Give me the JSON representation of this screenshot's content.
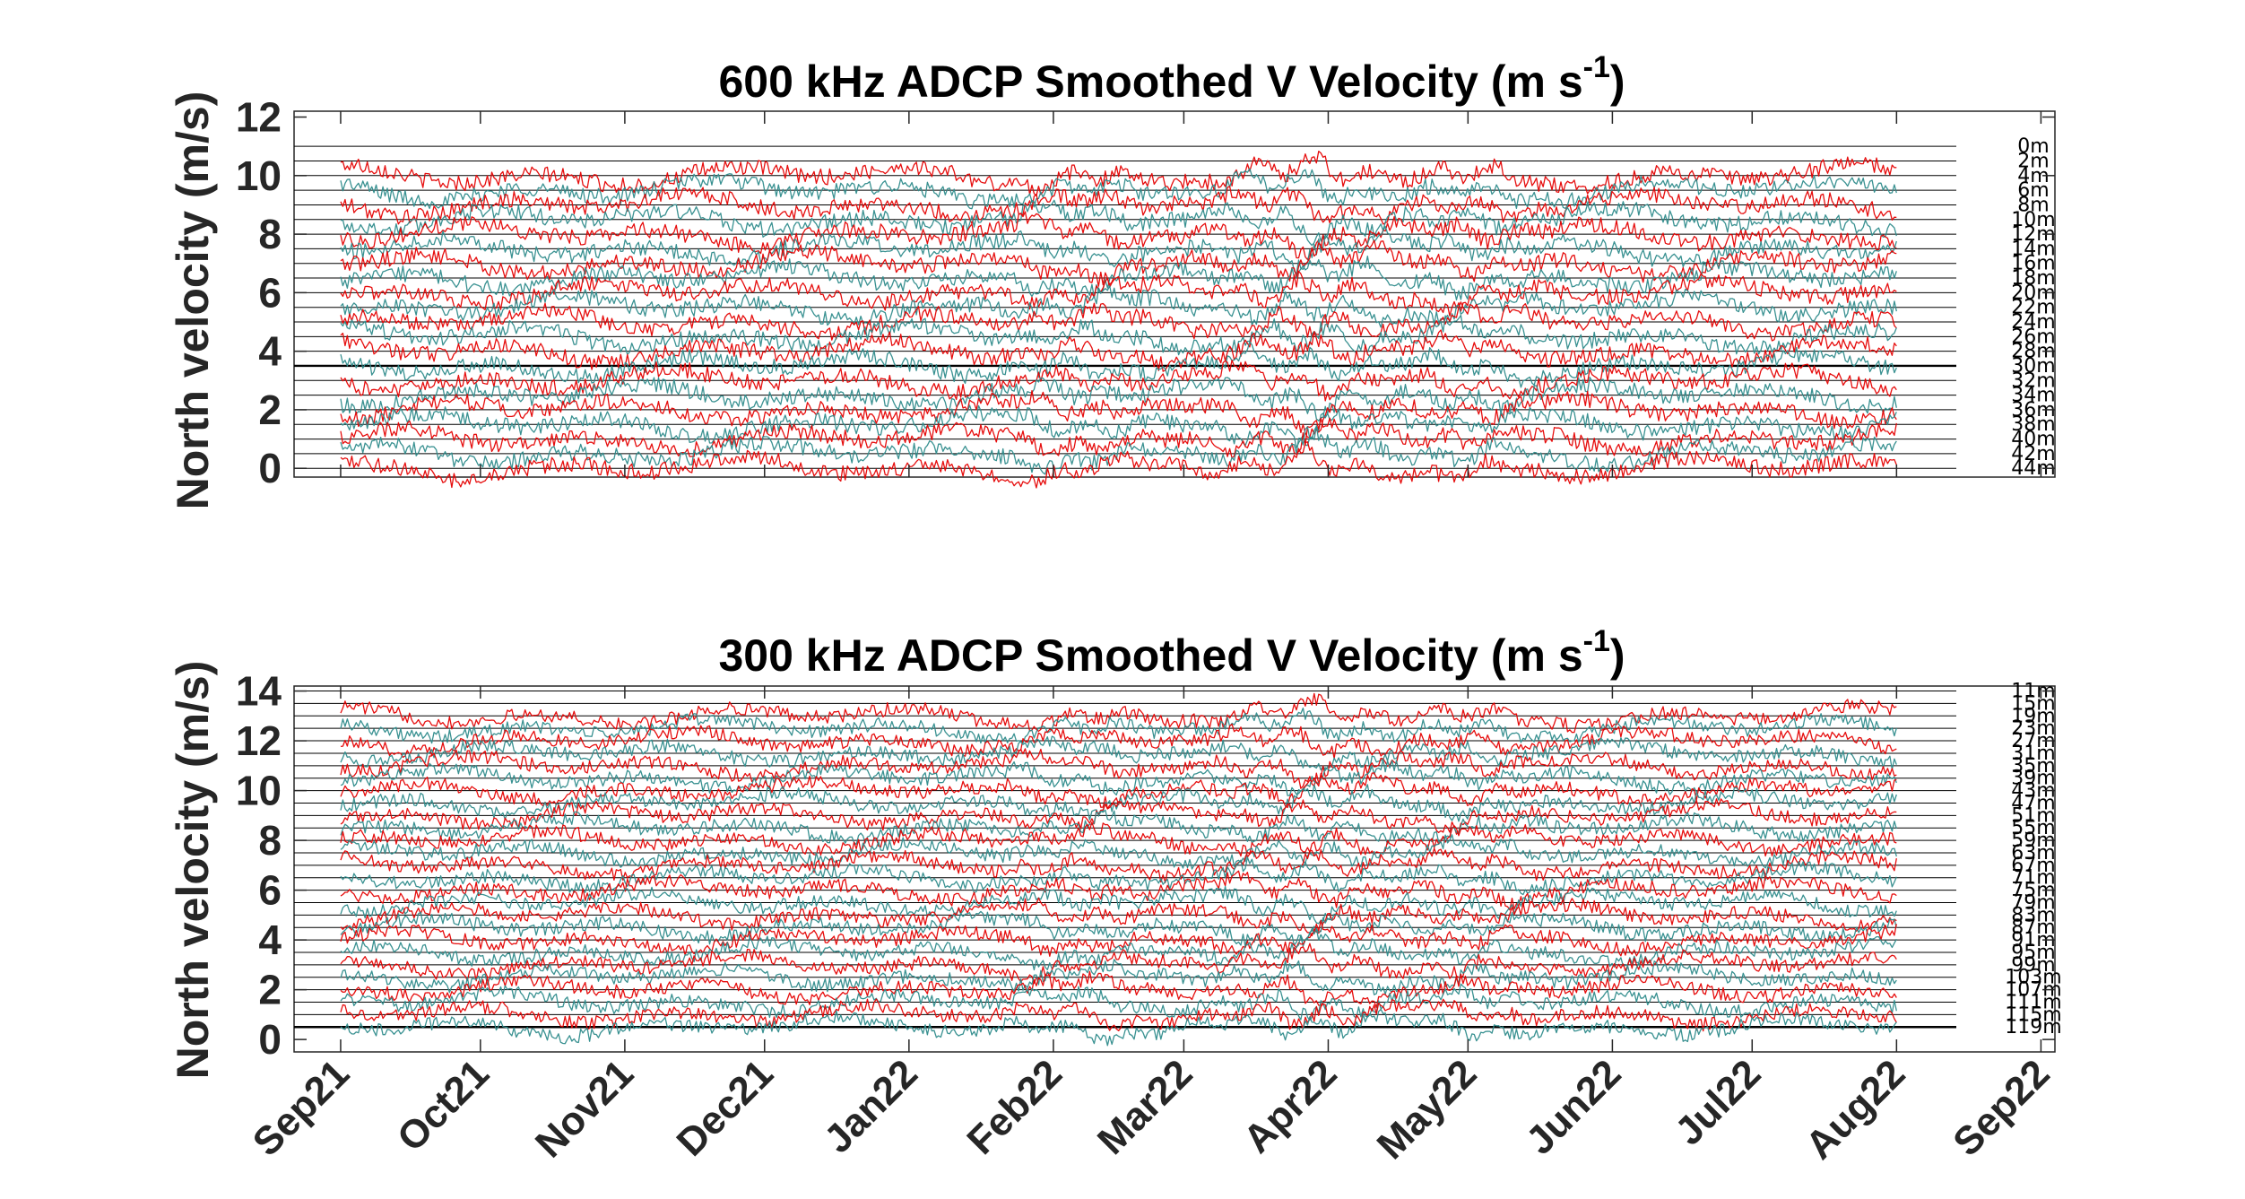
{
  "chart_data": [
    {
      "type": "line",
      "title": "600 kHz ADCP Smoothed V Velocity  (m s",
      "title_superscript": "-1",
      "title_suffix": ")",
      "ylabel": "North velocity (m/s)",
      "ylim": [
        -0.3,
        12.2
      ],
      "yticks": [
        "0",
        "2",
        "4",
        "6",
        "8",
        "10",
        "12"
      ],
      "y_tick_values": [
        0,
        2,
        4,
        6,
        8,
        10,
        12
      ],
      "x_start": "2021-08-22",
      "x_end": "2022-09-04",
      "data_start": "2021-09-01",
      "data_end": "2022-08-01",
      "depth_labels": [
        "0m",
        "2m",
        "4m",
        "6m",
        "8m",
        "10m",
        "12m",
        "14m",
        "16m",
        "18m",
        "20m",
        "22m",
        "24m",
        "26m",
        "28m",
        "30m",
        "32m",
        "34m",
        "36m",
        "38m",
        "40m",
        "42m",
        "44m"
      ],
      "baselines": [
        11.0,
        10.5,
        10.0,
        9.5,
        9.0,
        8.5,
        8.0,
        7.5,
        7.0,
        6.5,
        6.0,
        5.5,
        5.0,
        4.5,
        4.0,
        3.5,
        3.0,
        2.5,
        2.0,
        1.5,
        1.0,
        0.5,
        0.0
      ],
      "plotted_from_index": 2,
      "series_colors": [
        "#e50000",
        "#2e8b8b"
      ],
      "highlight_line": 3.5,
      "grid": false
    },
    {
      "type": "line",
      "title": "300 kHz ADCP Smoothed V Velocity  (m s",
      "title_superscript": "-1",
      "title_suffix": ")",
      "ylabel": "North velocity (m/s)",
      "ylim": [
        -0.5,
        14.2
      ],
      "yticks": [
        "0",
        "2",
        "4",
        "6",
        "8",
        "10",
        "12",
        "14"
      ],
      "y_tick_values": [
        0,
        2,
        4,
        6,
        8,
        10,
        12,
        14
      ],
      "x_start": "2021-08-22",
      "x_end": "2022-09-04",
      "data_start": "2021-09-01",
      "data_end": "2022-08-01",
      "depth_labels": [
        "11m",
        "15m",
        "19m",
        "23m",
        "27m",
        "31m",
        "35m",
        "39m",
        "43m",
        "47m",
        "51m",
        "55m",
        "59m",
        "63m",
        "67m",
        "71m",
        "75m",
        "79m",
        "83m",
        "87m",
        "91m",
        "95m",
        "99m",
        "103m",
        "107m",
        "111m",
        "115m",
        "119m"
      ],
      "baselines": [
        14.0,
        13.5,
        13.0,
        12.5,
        12.0,
        11.5,
        11.0,
        10.5,
        10.0,
        9.5,
        9.0,
        8.5,
        8.0,
        7.5,
        7.0,
        6.5,
        6.0,
        5.5,
        5.0,
        4.5,
        4.0,
        3.5,
        3.0,
        2.5,
        2.0,
        1.5,
        1.0,
        0.5
      ],
      "plotted_from_index": 2,
      "series_colors": [
        "#e50000",
        "#2e8b8b"
      ],
      "highlight_line": 0.5,
      "grid": false
    }
  ],
  "x_tick_labels": [
    "Sep21",
    "Oct21",
    "Nov21",
    "Dec21",
    "Jan22",
    "Feb22",
    "Mar22",
    "Apr22",
    "May22",
    "Jun22",
    "Jul22",
    "Aug22",
    "Sep22"
  ],
  "x_tick_dates": [
    "2021-09-01",
    "2021-10-01",
    "2021-11-01",
    "2021-12-01",
    "2022-01-01",
    "2022-02-01",
    "2022-03-01",
    "2022-04-01",
    "2022-05-01",
    "2022-06-01",
    "2022-07-01",
    "2022-08-01",
    "2022-09-01"
  ]
}
